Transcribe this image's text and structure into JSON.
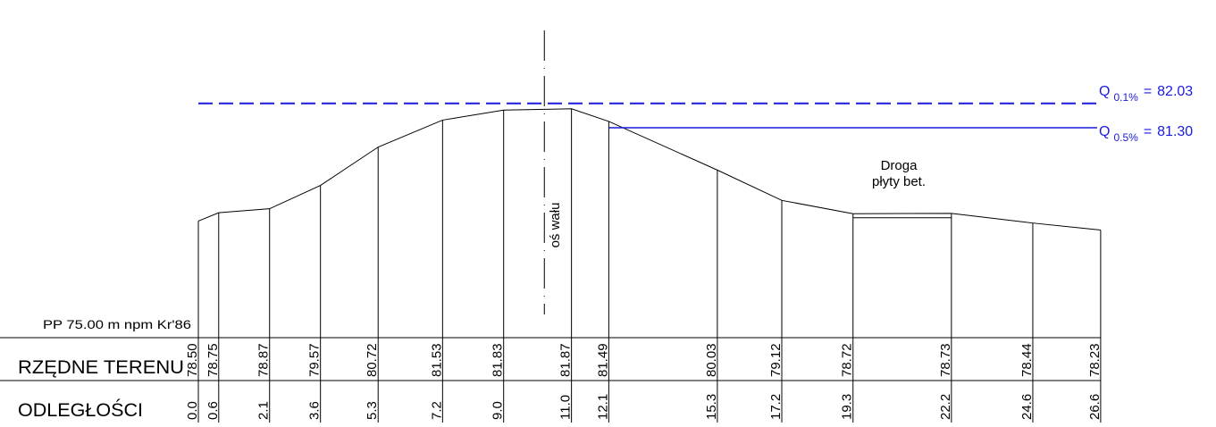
{
  "water_levels": [
    {
      "sub": "0.1%",
      "elevation": "82.03"
    },
    {
      "sub": "0.5%",
      "elevation": "81.30"
    }
  ],
  "road_label": [
    "Droga",
    "płyty bet."
  ],
  "axis_label": "oś wału",
  "datum_label": "PP 75.00 m npm Kr'86",
  "row_elevations_label": "RZĘDNE TERENU",
  "row_distances_label": "ODLEGŁOŚCI",
  "chart_data": {
    "type": "line",
    "xlabel": "ODLEGŁOŚCI",
    "ylabel": "RZĘDNE TERENU",
    "datum": 75.0,
    "axis_x": 10.2,
    "x": [
      0.0,
      0.6,
      2.1,
      3.6,
      5.3,
      7.2,
      9.0,
      11.0,
      12.1,
      15.3,
      17.2,
      19.3,
      22.2,
      24.6,
      26.6
    ],
    "x_labels": [
      "0.0",
      "0.6",
      "2.1",
      "3.6",
      "5.3",
      "7.2",
      "9.0",
      "11.0",
      "12.1",
      "15.3",
      "17.2",
      "19.3",
      "22.2",
      "24.6",
      "26.6"
    ],
    "y": [
      78.5,
      78.75,
      78.87,
      79.57,
      80.72,
      81.53,
      81.83,
      81.87,
      81.49,
      80.03,
      79.12,
      78.72,
      78.73,
      78.44,
      78.23
    ],
    "y_labels": [
      "78.50",
      "78.75",
      "78.87",
      "79.57",
      "80.72",
      "81.53",
      "81.83",
      "81.87",
      "81.49",
      "80.03",
      "79.12",
      "78.72",
      "78.73",
      "78.44",
      "78.23"
    ],
    "road_from": 19.3,
    "road_to": 22.2,
    "road_top": 78.74,
    "road_bottom": 78.6,
    "q_levels": [
      82.03,
      81.3
    ],
    "q_dashed": [
      true,
      false
    ],
    "q_from": [
      0.0,
      12.1
    ]
  },
  "colors": {
    "line": "#000000",
    "water": "#1a1adc"
  }
}
